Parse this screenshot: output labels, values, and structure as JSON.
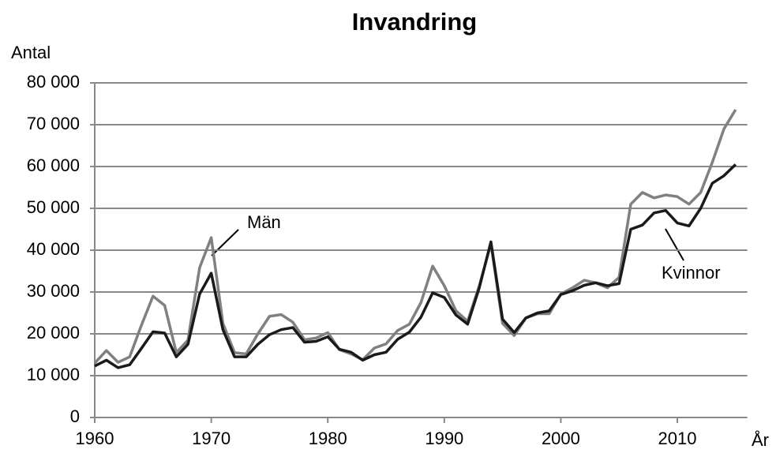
{
  "chart_data": {
    "type": "line",
    "title": "Invandring",
    "y_label": "Antal",
    "x_label": "År",
    "x": [
      1960,
      1961,
      1962,
      1963,
      1964,
      1965,
      1966,
      1967,
      1968,
      1969,
      1970,
      1971,
      1972,
      1973,
      1974,
      1975,
      1976,
      1977,
      1978,
      1979,
      1980,
      1981,
      1982,
      1983,
      1984,
      1985,
      1986,
      1987,
      1988,
      1989,
      1990,
      1991,
      1992,
      1993,
      1994,
      1995,
      1996,
      1997,
      1998,
      1999,
      2000,
      2001,
      2002,
      2003,
      2004,
      2005,
      2006,
      2007,
      2008,
      2009,
      2010,
      2011,
      2012,
      2013,
      2014,
      2015
    ],
    "series": [
      {
        "name": "Män",
        "color": "#808080",
        "values": [
          13000,
          16000,
          13200,
          14500,
          22000,
          29000,
          26800,
          15500,
          18500,
          35800,
          43000,
          22500,
          15500,
          15200,
          20000,
          24200,
          24600,
          22800,
          18600,
          19000,
          20300,
          16200,
          15200,
          13800,
          16600,
          17600,
          20800,
          22300,
          27500,
          36200,
          31500,
          25500,
          23000,
          31500,
          41500,
          22500,
          19600,
          23800,
          24800,
          24800,
          29500,
          31000,
          32800,
          32200,
          31000,
          33500,
          51000,
          53800,
          52500,
          53200,
          52800,
          51000,
          53800,
          61000,
          69000,
          73600
        ]
      },
      {
        "name": "Kvinnor",
        "color": "#1a1a1a",
        "values": [
          12300,
          13700,
          11900,
          12600,
          16500,
          20500,
          20200,
          14500,
          17500,
          29500,
          34500,
          21000,
          14500,
          14500,
          17500,
          19800,
          21000,
          21500,
          18000,
          18200,
          19300,
          16300,
          15600,
          13700,
          15000,
          15600,
          18700,
          20400,
          24000,
          29800,
          28700,
          24500,
          22300,
          31000,
          42000,
          23500,
          20300,
          23800,
          25000,
          25500,
          29400,
          30300,
          31600,
          32200,
          31500,
          32000,
          45000,
          46000,
          48900,
          49500,
          46500,
          45800,
          50000,
          56000,
          57800,
          60500
        ]
      }
    ],
    "xlim": [
      1960,
      2016
    ],
    "xticks": [
      1960,
      1970,
      1980,
      1990,
      2000,
      2010
    ],
    "ylim": [
      0,
      80000
    ],
    "yticks": [
      0,
      {
        "value": 10000,
        "label": "10 000"
      },
      {
        "value": 20000,
        "label": "20 000"
      },
      {
        "value": 30000,
        "label": "30 000"
      },
      {
        "value": 40000,
        "label": "40 000"
      },
      {
        "value": 50000,
        "label": "50 000"
      },
      {
        "value": 60000,
        "label": "60 000"
      },
      {
        "value": 70000,
        "label": "70 000"
      },
      {
        "value": 80000,
        "label": "80 000"
      }
    ],
    "grid": true
  }
}
